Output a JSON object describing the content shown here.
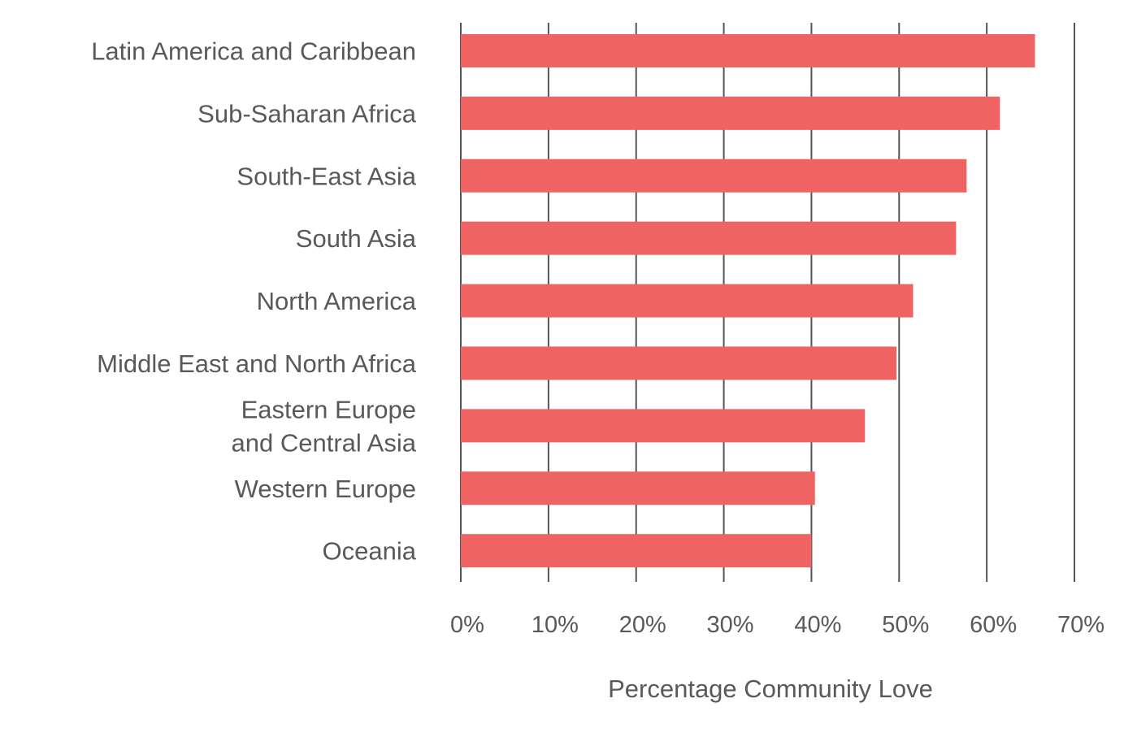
{
  "chart_data": {
    "type": "bar",
    "orientation": "horizontal",
    "categories": [
      [
        "Latin America and Caribbean"
      ],
      [
        "Sub-Saharan Africa"
      ],
      [
        "South-East Asia"
      ],
      [
        "South Asia"
      ],
      [
        "North America"
      ],
      [
        "Middle East and North Africa"
      ],
      [
        "Eastern Europe",
        "and Central Asia"
      ],
      [
        "Western Europe"
      ],
      [
        "Oceania"
      ]
    ],
    "values": [
      65.5,
      61.5,
      57.7,
      56.5,
      51.6,
      49.7,
      46.1,
      40.4,
      40.0
    ],
    "xlim": [
      0,
      70
    ],
    "xticks": [
      0,
      10,
      20,
      30,
      40,
      50,
      60,
      70
    ],
    "xtick_labels": [
      "0%",
      "10%",
      "20%",
      "30%",
      "40%",
      "50%",
      "60%",
      "70%"
    ],
    "xlabel": "Percentage Community Love",
    "ylabel": "",
    "title": "",
    "grid": true,
    "legend": "none",
    "colors": {
      "bar": "#f06363",
      "grid": "#555555",
      "text": "#595959"
    }
  }
}
